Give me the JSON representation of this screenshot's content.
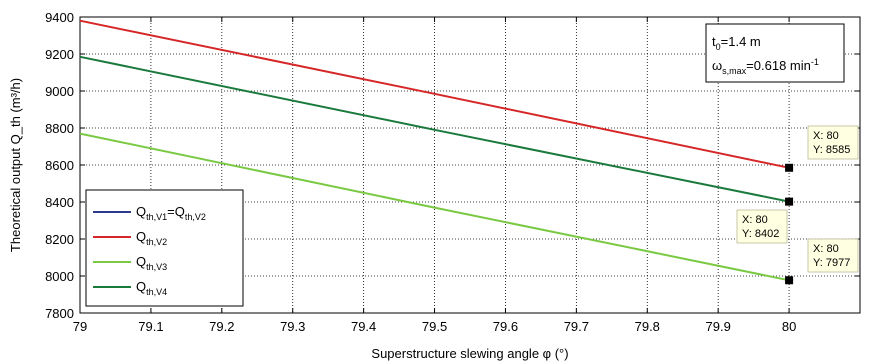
{
  "chart_data": {
    "type": "line",
    "xlabel": "Superstructure slewing angle φ (°)",
    "ylabel": "Theoretical output Q_th (m³/h)",
    "xlim": [
      79,
      80.1
    ],
    "ylim": [
      7800,
      9400
    ],
    "xticks": [
      "79",
      "79.1",
      "79.2",
      "79.3",
      "79.4",
      "79.5",
      "79.6",
      "79.7",
      "79.8",
      "79.9",
      "80"
    ],
    "yticks": [
      "7800",
      "8000",
      "8200",
      "8400",
      "8600",
      "8800",
      "9000",
      "9200",
      "9400"
    ],
    "grid": true,
    "legend_position": "bottom-left",
    "series": [
      {
        "name": "Q_th,V1=Q_th,V2",
        "color": "#2b3a8f",
        "visible_line": false,
        "x": [
          79,
          79.5,
          80
        ],
        "y": [
          9380,
          8985,
          8585
        ]
      },
      {
        "name": "Q_th,V2",
        "color": "#d62728",
        "x": [
          79,
          79.5,
          80
        ],
        "y": [
          9380,
          8985,
          8585
        ]
      },
      {
        "name": "Q_th,V3",
        "color": "#7ac943",
        "x": [
          79,
          79.5,
          80
        ],
        "y": [
          8770,
          8370,
          7977
        ]
      },
      {
        "name": "Q_th,V4",
        "color": "#1a7a3c",
        "x": [
          79,
          79.5,
          80
        ],
        "y": [
          9185,
          8790,
          8402
        ]
      }
    ],
    "infobox": {
      "line1_main": "t",
      "line1_sub": "0",
      "line1_rest": "=1.4 m",
      "line2_main": "ω",
      "line2_sub": "s,max",
      "line2_rest": "=0.618 min",
      "line2_sup": "-1"
    },
    "datatips": [
      {
        "x_label": "X: 80",
        "y_label": "Y: 8585",
        "x": 80,
        "y": 8585
      },
      {
        "x_label": "X: 80",
        "y_label": "Y: 8402",
        "x": 80,
        "y": 8402
      },
      {
        "x_label": "X: 80",
        "y_label": "Y: 7977",
        "x": 80,
        "y": 7977
      }
    ]
  }
}
